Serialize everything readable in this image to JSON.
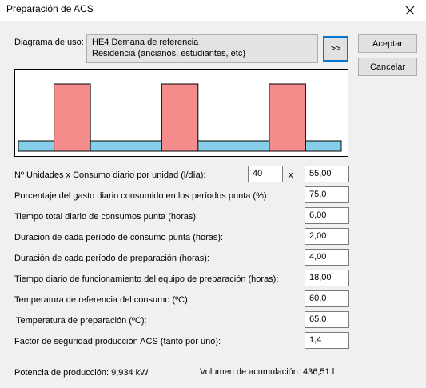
{
  "window": {
    "title": "Preparación de ACS"
  },
  "usage": {
    "label": "Diagrama de uso:",
    "line1": "HE4 Demana de referencia",
    "line2": "Residencia (ancianos, estudiantes, etc)",
    "select_button": ">>"
  },
  "buttons": {
    "accept": "Aceptar",
    "cancel": "Cancelar"
  },
  "diagram": {
    "hours": 24,
    "peak_periods": 3,
    "peak_duration_h": 2,
    "base_color": "#87ceeb",
    "peak_color": "#f48c8c"
  },
  "fields": {
    "units_label": "Nº Unidades x Consumo diario por unidad (l/día):",
    "units_value": "40",
    "times_sign": "x",
    "daily_consumption_value": "55,00",
    "rows": [
      {
        "label": "Porcentaje del gasto diario consumido en los períodos punta (%):",
        "value": "75,0"
      },
      {
        "label": "Tiempo total diario de consumos punta (horas):",
        "value": "6,00"
      },
      {
        "label": "Duración de cada período de consumo punta (horas):",
        "value": "2,00"
      },
      {
        "label": "Duración de cada período de preparación (horas):",
        "value": "4,00"
      },
      {
        "label": "Tiempo diario de funcionamiento del equipo de preparación (horas):",
        "value": "18,00"
      },
      {
        "label": "Temperatura de referencia del consumo (ºC):",
        "value": "60,0"
      },
      {
        "label": "Temperatura de preparación (ºC):",
        "value": "65,0"
      },
      {
        "label": "Factor de seguridad producción ACS (tanto por uno):",
        "value": "1,4"
      }
    ]
  },
  "results": {
    "power": "Potencia de producción: 9,934 kW",
    "volume": "Volumen de acumulación: 436,51 l"
  }
}
